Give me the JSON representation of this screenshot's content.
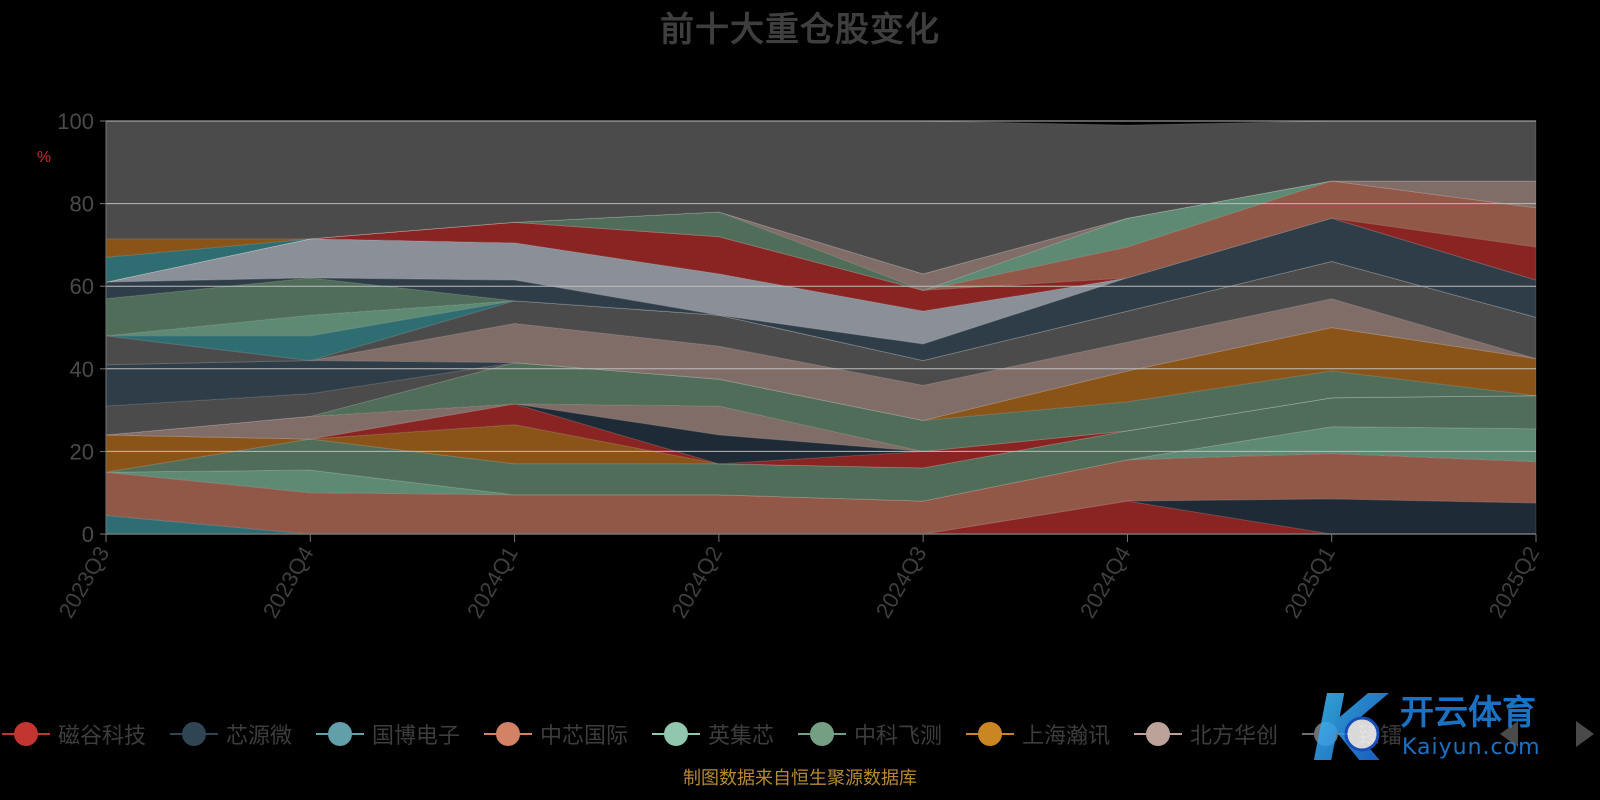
{
  "chart_data": {
    "type": "area",
    "title": "前十大重仓股变化",
    "ylabel": "%",
    "ylim": [
      0,
      100
    ],
    "yticks": [
      0,
      20,
      40,
      60,
      80,
      100
    ],
    "categories": [
      "2023Q3",
      "2023Q4",
      "2024Q1",
      "2024Q2",
      "2024Q3",
      "2024Q4",
      "2025Q1",
      "2025Q2"
    ],
    "grid": true,
    "legend_position": "bottom",
    "bands": [
      {
        "color": "#2e6d72",
        "lower": [
          0,
          0,
          0,
          0,
          0,
          0,
          0,
          0
        ],
        "upper": [
          4.5,
          0,
          0,
          0,
          0,
          0,
          0,
          0
        ]
      },
      {
        "color": "#8a2422",
        "lower": [
          0,
          0,
          0,
          0,
          0,
          0,
          0,
          0
        ],
        "upper": [
          0,
          0,
          0,
          0,
          0,
          8,
          0,
          0
        ]
      },
      {
        "color": "#1e2a35",
        "lower": [
          0,
          0,
          0,
          0,
          0,
          8,
          0,
          0
        ],
        "upper": [
          0,
          0,
          0,
          0,
          0,
          8,
          8.5,
          7.5
        ]
      },
      {
        "color": "#915848",
        "lower": [
          4.5,
          0,
          0,
          0,
          0,
          8,
          8.5,
          7.5
        ],
        "upper": [
          15,
          10,
          9.5,
          9.5,
          8,
          18,
          19.5,
          17.5
        ]
      },
      {
        "color": "#5e8a74",
        "lower": [
          15,
          10,
          9.5,
          9.5,
          8,
          18,
          19.5,
          17.5
        ],
        "upper": [
          15,
          15.5,
          9.5,
          9.5,
          8,
          18,
          26,
          25.5
        ]
      },
      {
        "color": "#806d68",
        "lower": [
          15,
          15.5,
          9.5,
          9.5,
          8,
          18,
          26,
          25.5
        ],
        "upper": [
          15,
          23,
          17,
          17,
          16,
          25,
          33,
          33.5
        ]
      },
      {
        "color": "#4f6d58",
        "lower": [
          15,
          15.5,
          9.5,
          9.5,
          8,
          18,
          26,
          25.5
        ],
        "upper": [
          15,
          23,
          17,
          17,
          16,
          25,
          33,
          33.5
        ]
      },
      {
        "color": "#8a5418",
        "lower": [
          15,
          23,
          17,
          17,
          16,
          25,
          33,
          33.5
        ],
        "upper": [
          24,
          23,
          26.5,
          17,
          16,
          25,
          33,
          33.5
        ]
      },
      {
        "color": "#8a2422",
        "lower": [
          24,
          23,
          26.5,
          17,
          16,
          25,
          33,
          33.5
        ],
        "upper": [
          24,
          23,
          31.5,
          17,
          20,
          25,
          33,
          33.5
        ]
      },
      {
        "color": "#1e2a35",
        "lower": [
          24,
          23,
          31.5,
          17,
          20,
          25,
          33,
          33.5
        ],
        "upper": [
          24,
          23,
          31.5,
          24,
          20,
          25,
          33,
          33.5
        ]
      },
      {
        "color": "#806d68",
        "lower": [
          24,
          23,
          31.5,
          24,
          20,
          25,
          33,
          33.5
        ],
        "upper": [
          24,
          28.5,
          31.5,
          31,
          20,
          25,
          33,
          33.5
        ]
      },
      {
        "color": "#4f6d58",
        "lower": [
          24,
          28.5,
          31.5,
          31,
          20,
          25,
          33,
          33.5
        ],
        "upper": [
          24,
          28.5,
          41.5,
          37.5,
          27.5,
          32,
          39.5,
          33.5
        ]
      },
      {
        "color": "#8a5418",
        "lower": [
          24,
          28.5,
          41.5,
          37.5,
          27.5,
          32,
          39.5,
          33.5
        ],
        "upper": [
          24,
          28.5,
          41.5,
          37.5,
          27.5,
          39.5,
          50,
          42.5
        ]
      },
      {
        "color": "#4b4b4b",
        "lower": [
          24,
          28.5,
          41.5,
          37.5,
          27.5,
          39.5,
          50,
          42.5
        ],
        "upper": [
          31,
          34,
          41.5,
          37.5,
          27.5,
          39.5,
          50,
          42.5
        ]
      },
      {
        "color": "#2e3d48",
        "lower": [
          31,
          34,
          41.5,
          37.5,
          27.5,
          39.5,
          50,
          42.5
        ],
        "upper": [
          41,
          42,
          41.5,
          37.5,
          27.5,
          39.5,
          50,
          42.5
        ]
      },
      {
        "color": "#806d68",
        "lower": [
          41,
          42,
          41.5,
          37.5,
          27.5,
          39.5,
          50,
          42.5
        ],
        "upper": [
          41,
          42,
          51,
          45.5,
          36,
          46.5,
          57,
          42.5
        ]
      },
      {
        "color": "#4b4b4b",
        "lower": [
          41,
          42,
          51,
          45.5,
          36,
          46.5,
          57,
          42.5
        ],
        "upper": [
          48,
          42,
          56.5,
          53,
          42,
          54,
          66,
          52.5
        ]
      },
      {
        "color": "#2e6d72",
        "lower": [
          48,
          42,
          56.5,
          53,
          42,
          54,
          66,
          52.5
        ],
        "upper": [
          48,
          48,
          56.5,
          53,
          42,
          54,
          66,
          52.5
        ]
      },
      {
        "color": "#5e8a74",
        "lower": [
          48,
          48,
          56.5,
          53,
          42,
          54,
          66,
          52.5
        ],
        "upper": [
          48,
          53,
          56.5,
          53,
          42,
          54,
          66,
          52.5
        ]
      },
      {
        "color": "#4f6d58",
        "lower": [
          48,
          53,
          56.5,
          53,
          42,
          54,
          66,
          52.5
        ],
        "upper": [
          57,
          62,
          56.5,
          53,
          42,
          54,
          66,
          52.5
        ]
      },
      {
        "color": "#2e3d48",
        "lower": [
          57,
          62,
          56.5,
          53,
          42,
          54,
          66,
          52.5
        ],
        "upper": [
          61,
          62,
          61.5,
          53,
          46,
          62,
          76.5,
          61.5
        ]
      },
      {
        "color": "#8b8f97",
        "lower": [
          61,
          62,
          61.5,
          53,
          46,
          62,
          76.5,
          61.5
        ],
        "upper": [
          61,
          71.5,
          70.5,
          63,
          54,
          62,
          76.5,
          61.5
        ]
      },
      {
        "color": "#8a2422",
        "lower": [
          61,
          71.5,
          70.5,
          63,
          54,
          62,
          76.5,
          61.5
        ],
        "upper": [
          61,
          71.5,
          75.5,
          72,
          59,
          62,
          76.5,
          69.5
        ]
      },
      {
        "color": "#915848",
        "lower": [
          61,
          71.5,
          75.5,
          72,
          59,
          62,
          76.5,
          69.5
        ],
        "upper": [
          61,
          71.5,
          75.5,
          72,
          59,
          69.5,
          85.5,
          79
        ]
      },
      {
        "color": "#5e8a74",
        "lower": [
          61,
          71.5,
          75.5,
          72,
          59,
          69.5,
          85.5,
          79
        ],
        "upper": [
          61,
          71.5,
          75.5,
          72,
          59,
          76.5,
          85.5,
          79
        ]
      },
      {
        "color": "#4f6d58",
        "lower": [
          61,
          71.5,
          75.5,
          72,
          59,
          76.5,
          85.5,
          79
        ],
        "upper": [
          61,
          71.5,
          75.5,
          78,
          59,
          76.5,
          85.5,
          79
        ]
      },
      {
        "color": "#806d68",
        "lower": [
          61,
          71.5,
          75.5,
          78,
          59,
          76.5,
          85.5,
          79
        ],
        "upper": [
          61,
          71.5,
          75.5,
          78,
          63,
          76.5,
          85.5,
          85.5
        ]
      },
      {
        "color": "#2e6d72",
        "lower": [
          61,
          71.5,
          75.5,
          78,
          63,
          76.5,
          85.5,
          85.5
        ],
        "upper": [
          67,
          71.5,
          75.5,
          78,
          63,
          76.5,
          85.5,
          85.5
        ]
      },
      {
        "color": "#8a5418",
        "lower": [
          67,
          71.5,
          75.5,
          78,
          63,
          76.5,
          85.5,
          85.5
        ],
        "upper": [
          71.5,
          71.5,
          75.5,
          78,
          63,
          76.5,
          85.5,
          85.5
        ]
      },
      {
        "color": "#4b4b4b",
        "lower": [
          71.5,
          71.5,
          75.5,
          78,
          63,
          76.5,
          85.5,
          85.5
        ],
        "upper": [
          100,
          100,
          100,
          100,
          100,
          99,
          100,
          100
        ]
      }
    ],
    "legend": [
      {
        "name": "磁谷科技",
        "color": "#c23531"
      },
      {
        "name": "芯源微",
        "color": "#2f4554"
      },
      {
        "name": "国博电子",
        "color": "#61a0a8"
      },
      {
        "name": "中芯国际",
        "color": "#d48265"
      },
      {
        "name": "英集芯",
        "color": "#91c7ae"
      },
      {
        "name": "中科飞测",
        "color": "#749f83"
      },
      {
        "name": "上海瀚讯",
        "color": "#ca8622"
      },
      {
        "name": "北方华创",
        "color": "#bda29a"
      },
      {
        "name": "臻镭",
        "color": "#6e7074"
      }
    ]
  },
  "source_note": "制图数据来自恒生聚源数据库",
  "watermark": {
    "brand": "开云体育",
    "domain": "Kaiyun.com",
    "letter": "K"
  }
}
